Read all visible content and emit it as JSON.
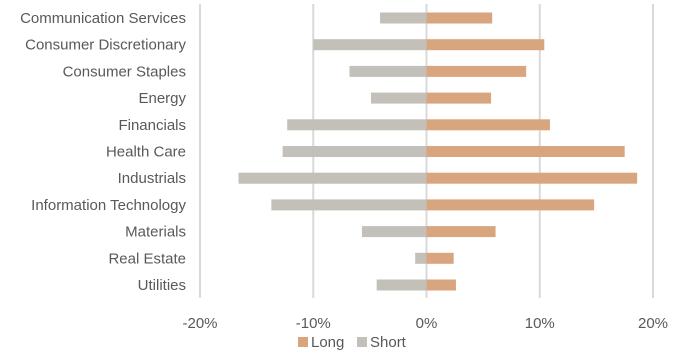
{
  "chart_data": {
    "type": "bar",
    "orientation": "horizontal",
    "categories": [
      "Communication Services",
      "Consumer Discretionary",
      "Consumer Staples",
      "Energy",
      "Financials",
      "Health Care",
      "Industrials",
      "Information Technology",
      "Materials",
      "Real Estate",
      "Utilities"
    ],
    "series": [
      {
        "name": "Long",
        "color": "#d9a57e",
        "values": [
          5.8,
          10.4,
          8.8,
          5.7,
          10.9,
          17.5,
          18.6,
          14.8,
          6.1,
          2.4,
          2.6
        ]
      },
      {
        "name": "Short",
        "color": "#c3bfb9",
        "values": [
          -4.1,
          -10.0,
          -6.8,
          -4.9,
          -12.3,
          -12.7,
          -16.6,
          -13.7,
          -5.7,
          -1.0,
          -4.4
        ]
      }
    ],
    "xlim": [
      -20,
      20
    ],
    "x_ticks": [
      "-20%",
      "-10%",
      "0%",
      "10%",
      "20%"
    ],
    "grid": true,
    "legend_position": "bottom"
  }
}
